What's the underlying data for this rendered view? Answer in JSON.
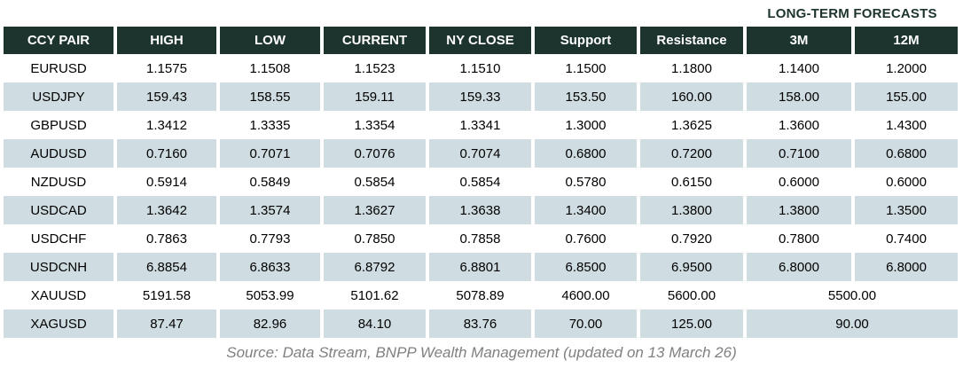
{
  "chart_data": {
    "type": "table",
    "title": "LONG-TERM FORECASTS",
    "title_note": "super-header spanning the 3M and 12M columns",
    "columns": [
      "CCY PAIR",
      "HIGH",
      "LOW",
      "CURRENT",
      "NY CLOSE",
      "Support",
      "Resistance",
      "3M",
      "12M"
    ],
    "rows": [
      {
        "pair": "EURUSD",
        "values": [
          "1.1575",
          "1.1508",
          "1.1523",
          "1.1510",
          "1.1500",
          "1.1800",
          "1.1400",
          "1.2000"
        ]
      },
      {
        "pair": "USDJPY",
        "values": [
          "159.43",
          "158.55",
          "159.11",
          "159.33",
          "153.50",
          "160.00",
          "158.00",
          "155.00"
        ]
      },
      {
        "pair": "GBPUSD",
        "values": [
          "1.3412",
          "1.3335",
          "1.3354",
          "1.3341",
          "1.3000",
          "1.3625",
          "1.3600",
          "1.4300"
        ]
      },
      {
        "pair": "AUDUSD",
        "values": [
          "0.7160",
          "0.7071",
          "0.7076",
          "0.7074",
          "0.6800",
          "0.7200",
          "0.7100",
          "0.6800"
        ]
      },
      {
        "pair": "NZDUSD",
        "values": [
          "0.5914",
          "0.5849",
          "0.5854",
          "0.5854",
          "0.5780",
          "0.6150",
          "0.6000",
          "0.6000"
        ]
      },
      {
        "pair": "USDCAD",
        "values": [
          "1.3642",
          "1.3574",
          "1.3627",
          "1.3638",
          "1.3400",
          "1.3800",
          "1.3800",
          "1.3500"
        ]
      },
      {
        "pair": "USDCHF",
        "values": [
          "0.7863",
          "0.7793",
          "0.7850",
          "0.7858",
          "0.7600",
          "0.7920",
          "0.7800",
          "0.7400"
        ]
      },
      {
        "pair": "USDCNH",
        "values": [
          "6.8854",
          "6.8633",
          "6.8792",
          "6.8801",
          "6.8500",
          "6.9500",
          "6.8000",
          "6.8000"
        ]
      },
      {
        "pair": "XAUUSD",
        "values": [
          "5191.58",
          "5053.99",
          "5101.62",
          "5078.89",
          "4600.00",
          "5600.00"
        ],
        "forecast_merged": "5500.00"
      },
      {
        "pair": "XAGUSD",
        "values": [
          "87.47",
          "82.96",
          "84.10",
          "83.76",
          "70.00",
          "125.00"
        ],
        "forecast_merged": "90.00"
      }
    ]
  },
  "footer": {
    "source": "Source: Data Stream, BNPP Wealth Management (updated on 13 March 26)"
  },
  "colors": {
    "header_bg": "#1c332e",
    "header_text": "#ffffff",
    "row_alt_bg": "#cfdde3",
    "body_text": "#000000",
    "title_text": "#1c332e",
    "source_text": "#808080",
    "page_bg": "#ffffff"
  }
}
